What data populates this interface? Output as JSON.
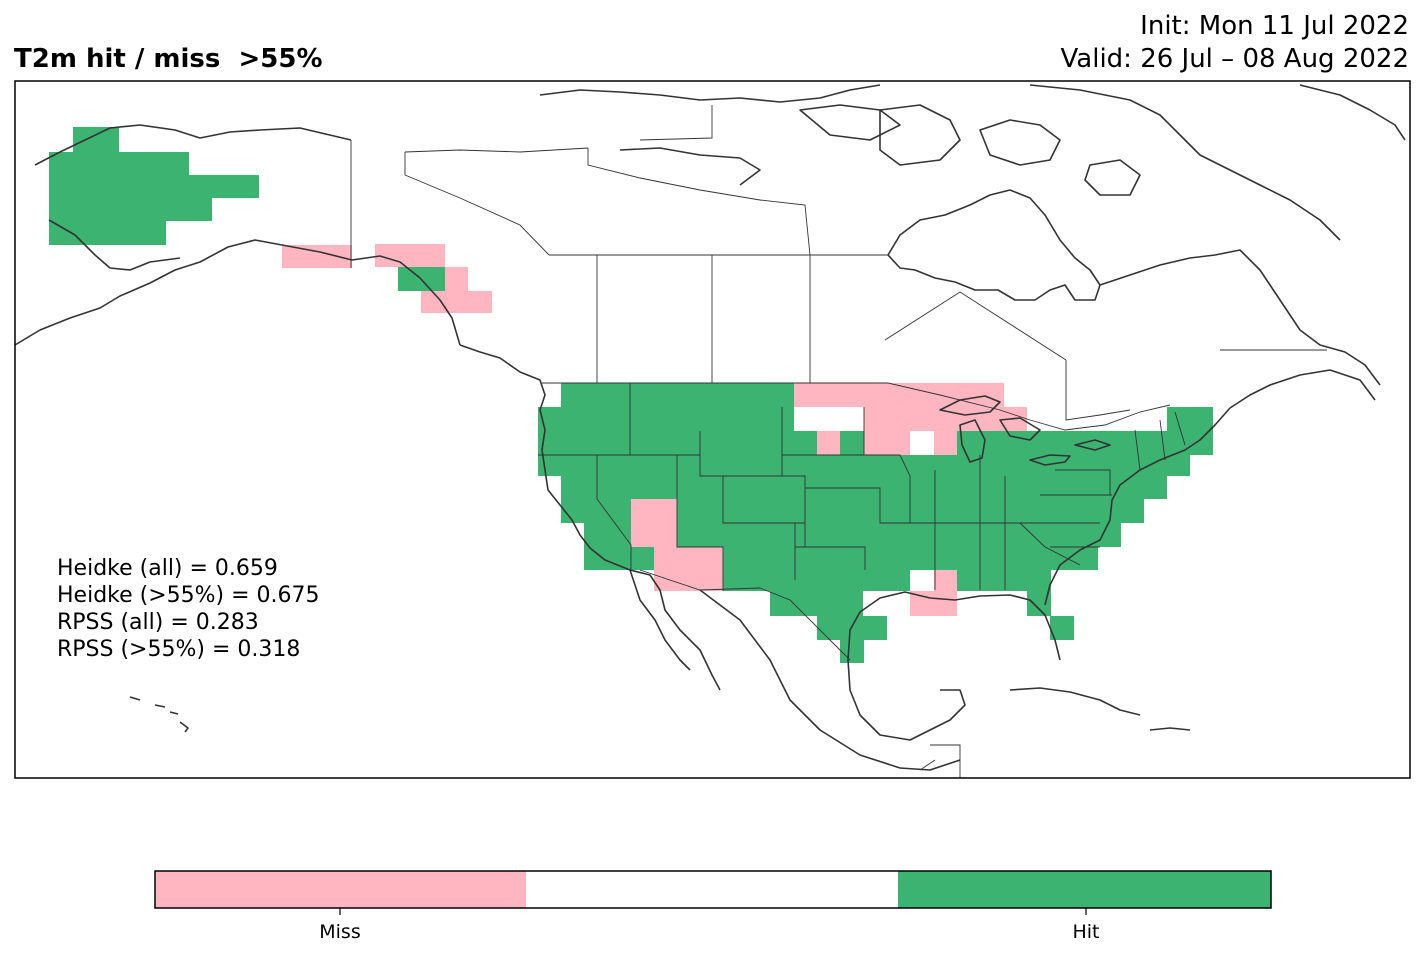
{
  "title": "T2m hit / miss  >55%",
  "init_text": "Init: Mon 11 Jul 2022",
  "valid_text": "Valid: 26 Jul – 08 Aug 2022",
  "stats": [
    "Heidke (all) = 0.659",
    "Heidke (>55%) = 0.675",
    "RPSS (all) = 0.283",
    "RPSS (>55%) = 0.318"
  ],
  "legend": {
    "categories": [
      "Miss",
      "",
      "Hit"
    ],
    "colors": {
      "miss": "#ffb6c1",
      "neutral": "#ffffff",
      "hit": "#3cb371"
    },
    "tick_labels": [
      "Miss",
      "Hit"
    ]
  },
  "colors": {
    "hit": "#3cb371",
    "miss": "#ffb6c1",
    "coast": "#333333"
  }
}
